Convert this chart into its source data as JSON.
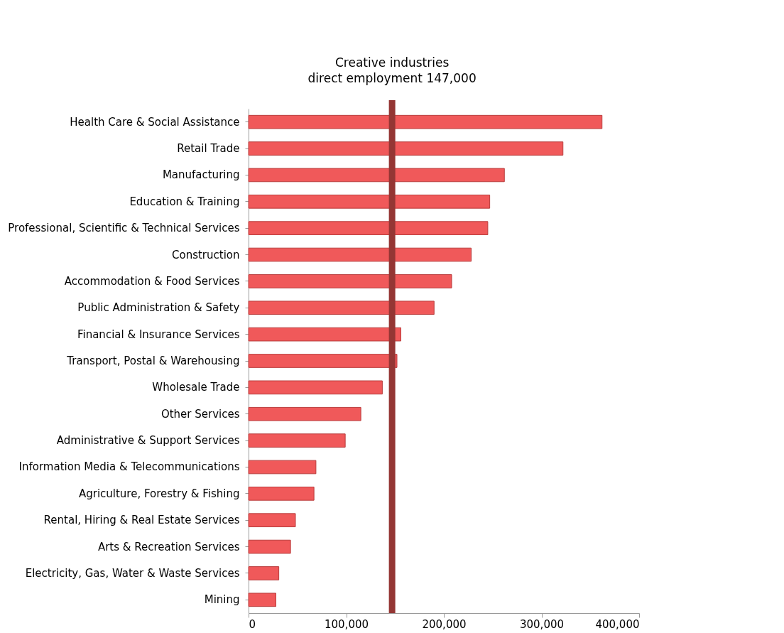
{
  "chart_data": {
    "type": "bar",
    "orientation": "horizontal",
    "categories": [
      "Health Care & Social Assistance",
      "Retail Trade",
      "Manufacturing",
      "Education & Training",
      "Professional, Scientific & Technical Services",
      "Construction",
      "Accommodation & Food Services",
      "Public Administration & Safety",
      "Financial & Insurance Services",
      "Transport, Postal & Warehousing",
      "Wholesale Trade",
      "Other Services",
      "Administrative & Support Services",
      "Information Media & Telecommunications",
      "Agriculture, Forestry & Fishing",
      "Rental, Hiring & Real Estate Services",
      "Arts & Recreation Services",
      "Electricity, Gas, Water & Waste Services",
      "Mining"
    ],
    "values": [
      362000,
      322000,
      262000,
      247000,
      245000,
      228000,
      208000,
      190000,
      156000,
      152000,
      137000,
      115000,
      99000,
      69000,
      67000,
      48000,
      43000,
      31000,
      28000
    ],
    "color": "#f0595a",
    "xlim": [
      0,
      400000
    ],
    "xticks": [
      0,
      {
        "value": 100000,
        "label": "100,000"
      },
      {
        "value": 200000,
        "label": "200,000"
      },
      {
        "value": 300000,
        "label": "300,000"
      },
      {
        "value": 400000,
        "label": "400,000"
      }
    ],
    "ref_lines": [
      {
        "axis": "x",
        "value": 147000,
        "label": "Creative industries direct employment 147,000",
        "color": "#943634"
      }
    ],
    "grid": false
  }
}
